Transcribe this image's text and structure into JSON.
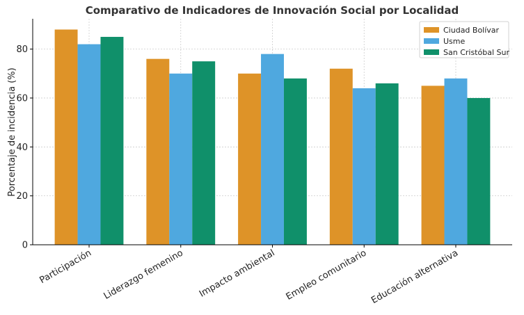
{
  "chart_data": {
    "type": "bar",
    "title": "Comparativo de Indicadores de Innovación Social por Localidad",
    "xlabel": "",
    "ylabel": "Porcentaje de incidencia (%)",
    "categories": [
      "Participación",
      "Liderazgo femenino",
      "Impacto ambiental",
      "Empleo comunitario",
      "Educación alternativa"
    ],
    "series": [
      {
        "name": "Ciudad Bolívar",
        "color": "#DE9328",
        "values": [
          88,
          76,
          70,
          72,
          65
        ]
      },
      {
        "name": "Usme",
        "color": "#4FA8DF",
        "values": [
          82,
          70,
          78,
          64,
          68
        ]
      },
      {
        "name": "San Cristóbal Sur",
        "color": "#10906A",
        "values": [
          85,
          75,
          68,
          66,
          60
        ]
      }
    ],
    "ylim": [
      0,
      92.4
    ],
    "yticks": [
      0,
      20,
      40,
      60,
      80
    ],
    "grid": true,
    "legend": "top-right"
  }
}
